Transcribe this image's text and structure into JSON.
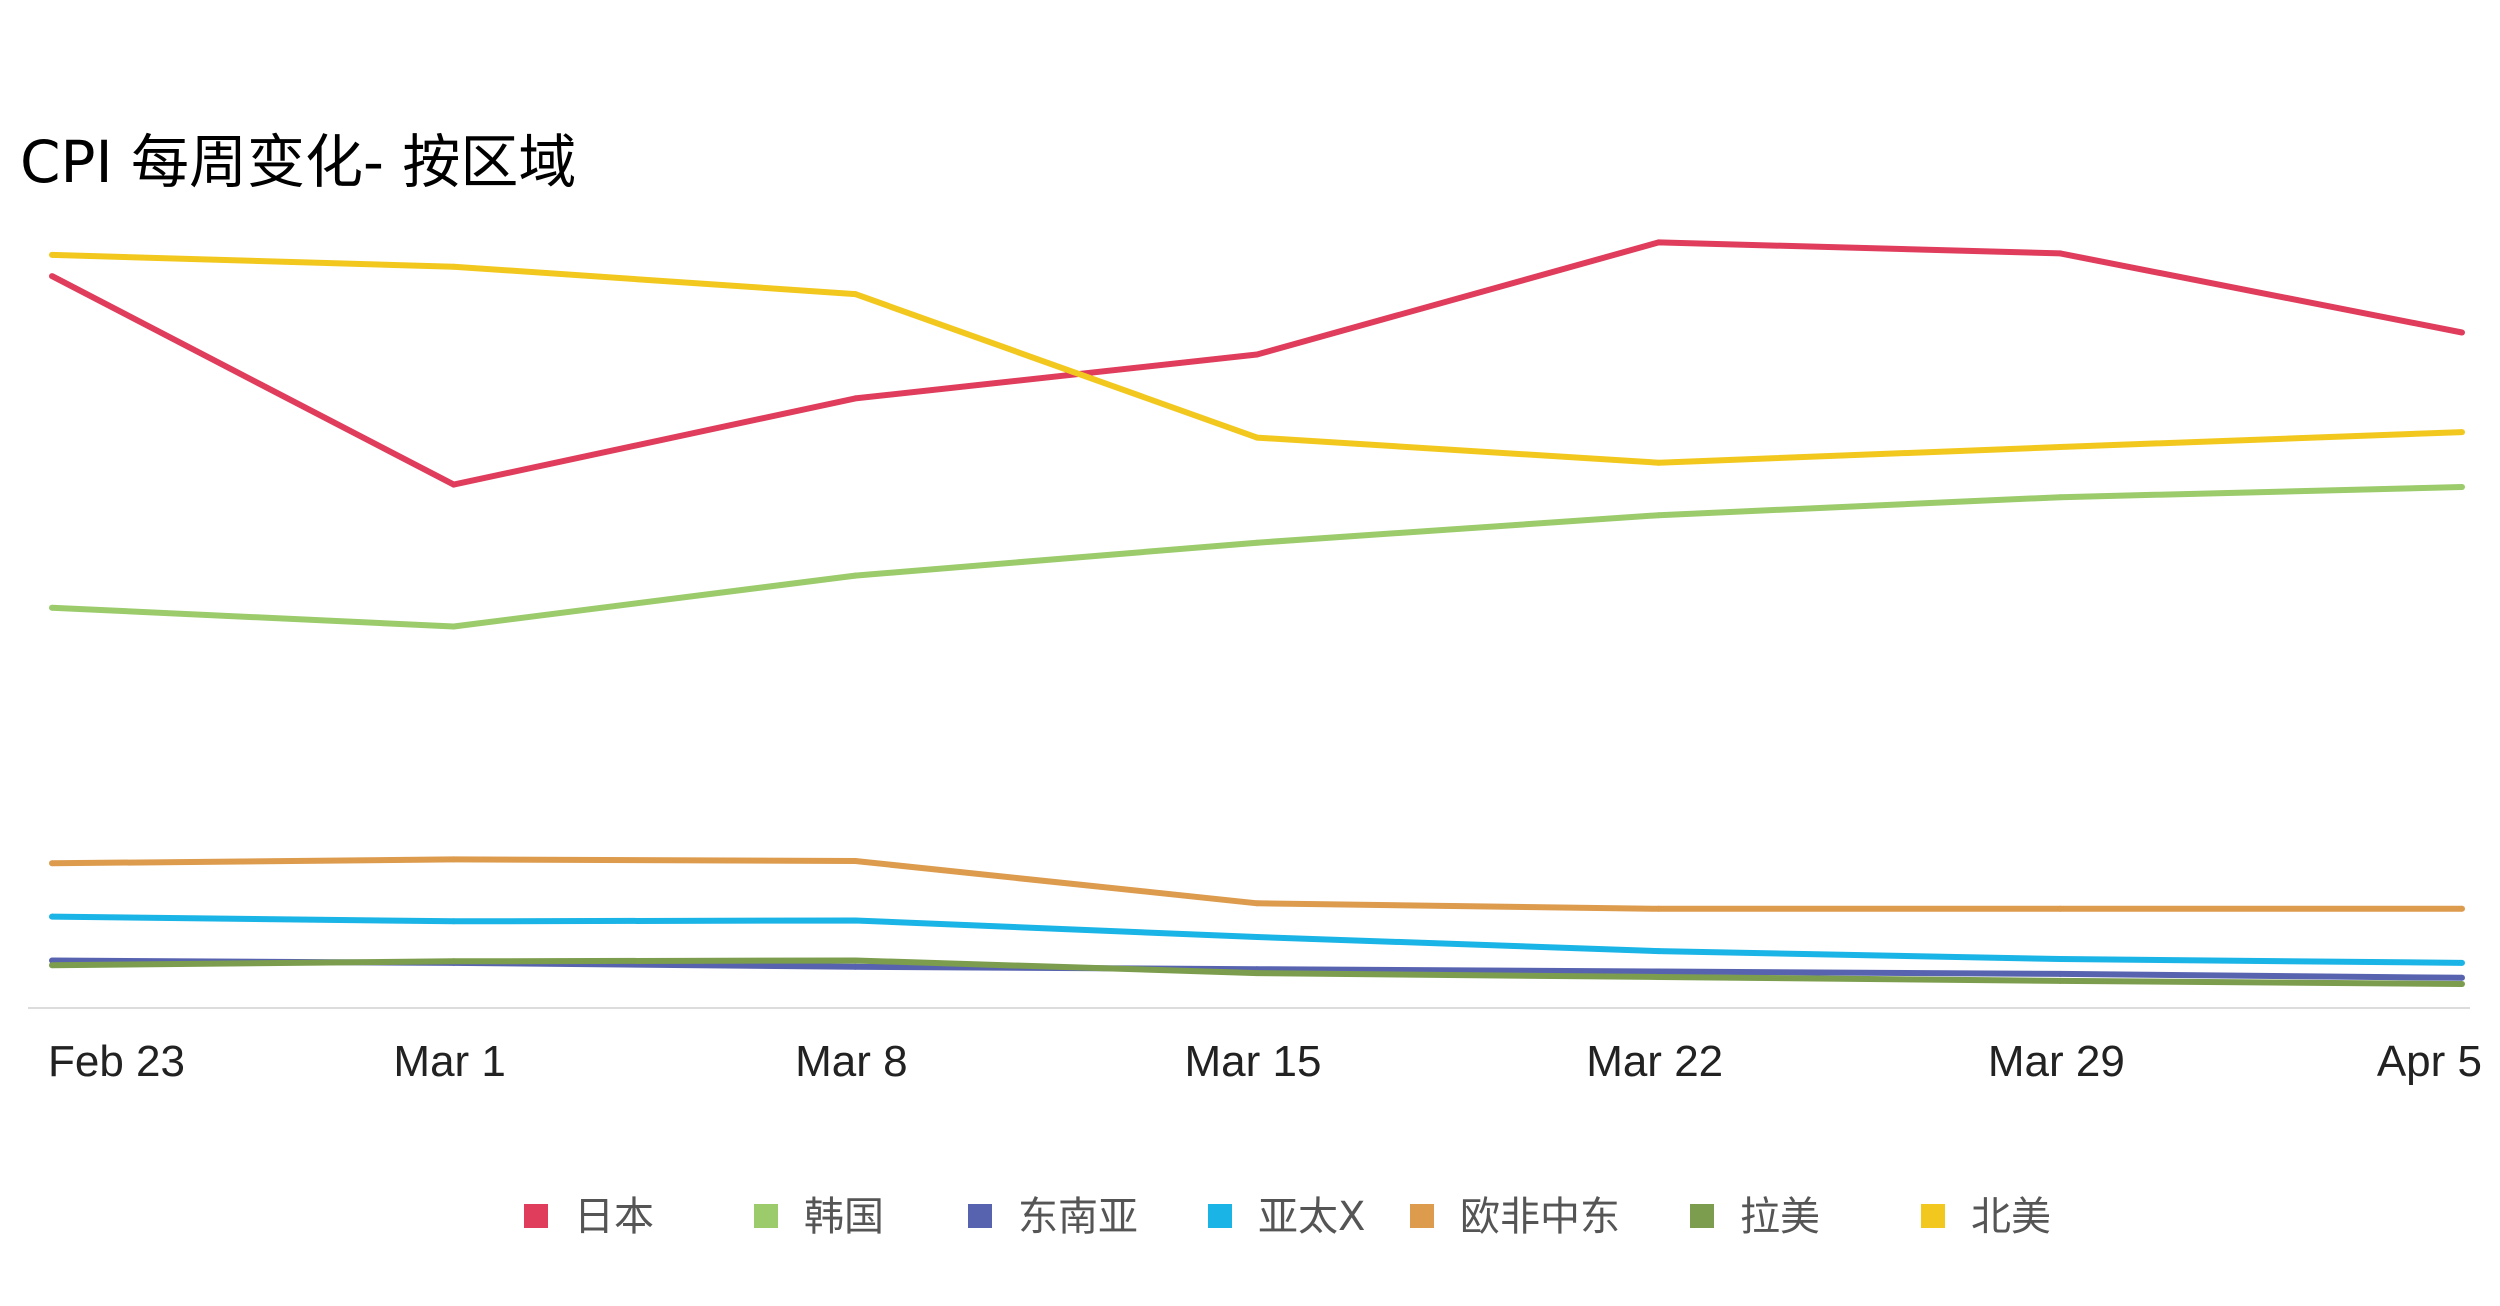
{
  "chart_data": {
    "type": "line",
    "title": "CPI 每周变化- 按区域",
    "xlabel": "",
    "ylabel": "",
    "categories": [
      "Feb 23",
      "Mar 1",
      "Mar 8",
      "Mar 15",
      "Mar 22",
      "Mar 29",
      "Apr 5"
    ],
    "ylim": [
      0,
      100
    ],
    "grid": false,
    "legend_position": "bottom",
    "series": [
      {
        "name": "日本",
        "color": "#e03c5c",
        "values": [
          93.1,
          66.5,
          77.5,
          83.1,
          97.4,
          96.0,
          85.9
        ]
      },
      {
        "name": "韩国",
        "color": "#9bcb6b",
        "values": [
          50.8,
          48.4,
          54.9,
          59.1,
          62.6,
          64.9,
          66.2
        ]
      },
      {
        "name": "东南亚",
        "color": "#5863b0",
        "values": [
          5.8,
          5.5,
          5.0,
          4.7,
          4.4,
          4.1,
          3.6
        ]
      },
      {
        "name": "亚太X",
        "color": "#1ab4e6",
        "values": [
          11.4,
          10.8,
          10.9,
          8.8,
          7.0,
          6.0,
          5.5
        ]
      },
      {
        "name": "欧非中东",
        "color": "#dd9b4e",
        "values": [
          18.2,
          18.7,
          18.5,
          13.1,
          12.4,
          12.4,
          12.4
        ]
      },
      {
        "name": "拉美",
        "color": "#7c9d4d",
        "values": [
          5.2,
          5.7,
          5.8,
          4.2,
          3.7,
          3.2,
          2.8
        ]
      },
      {
        "name": "北美",
        "color": "#f2c81e",
        "values": [
          95.8,
          94.3,
          90.8,
          72.5,
          69.3,
          71.3,
          73.2
        ]
      }
    ]
  }
}
